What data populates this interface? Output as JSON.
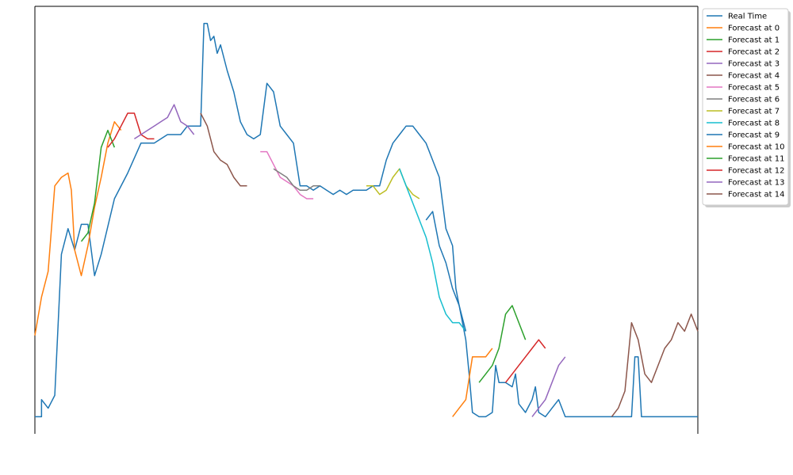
{
  "chart_data": {
    "type": "line",
    "title": "",
    "xlabel": "",
    "ylabel": "",
    "xlim": [
      0,
      100
    ],
    "ylim": [
      0,
      100
    ],
    "grid": false,
    "legend_position": "top-right",
    "series": [
      {
        "name": "Real Time",
        "color": "#1f77b4",
        "points": [
          [
            0,
            4
          ],
          [
            1,
            4
          ],
          [
            1,
            8
          ],
          [
            2,
            6
          ],
          [
            3,
            9
          ],
          [
            4,
            42
          ],
          [
            5,
            48
          ],
          [
            6,
            43
          ],
          [
            7,
            49
          ],
          [
            8,
            49
          ],
          [
            9,
            37
          ],
          [
            10,
            42
          ],
          [
            12,
            55
          ],
          [
            14,
            61
          ],
          [
            16,
            68
          ],
          [
            18,
            68
          ],
          [
            19,
            69
          ],
          [
            20,
            70
          ],
          [
            22,
            70
          ],
          [
            23,
            72
          ],
          [
            24,
            72
          ],
          [
            25,
            72
          ],
          [
            25.5,
            96
          ],
          [
            26,
            96
          ],
          [
            26.5,
            92
          ],
          [
            27,
            93
          ],
          [
            27.5,
            89
          ],
          [
            28,
            91
          ],
          [
            29,
            85
          ],
          [
            30,
            80
          ],
          [
            31,
            73
          ],
          [
            32,
            70
          ],
          [
            33,
            69
          ],
          [
            34,
            70
          ],
          [
            35,
            82
          ],
          [
            36,
            80
          ],
          [
            37,
            72
          ],
          [
            38,
            70
          ],
          [
            39,
            68
          ],
          [
            40,
            58
          ],
          [
            41,
            58
          ],
          [
            42,
            57
          ],
          [
            43,
            58
          ],
          [
            44,
            57
          ],
          [
            45,
            56
          ],
          [
            46,
            57
          ],
          [
            47,
            56
          ],
          [
            48,
            57
          ],
          [
            49,
            57
          ],
          [
            50,
            57
          ],
          [
            51,
            58
          ],
          [
            52,
            58
          ],
          [
            53,
            64
          ],
          [
            54,
            68
          ],
          [
            55,
            70
          ],
          [
            56,
            72
          ],
          [
            57,
            72
          ],
          [
            58,
            70
          ],
          [
            59,
            68
          ],
          [
            60,
            64
          ],
          [
            61,
            60
          ],
          [
            62,
            48
          ],
          [
            63,
            44
          ],
          [
            63.5,
            34
          ],
          [
            64,
            30
          ],
          [
            65,
            22
          ],
          [
            65.5,
            14
          ],
          [
            66,
            5
          ],
          [
            67,
            4
          ],
          [
            68,
            4
          ],
          [
            69,
            5
          ],
          [
            69.5,
            16
          ],
          [
            70,
            12
          ],
          [
            71,
            12
          ],
          [
            72,
            11
          ],
          [
            72.5,
            14
          ],
          [
            73,
            7
          ],
          [
            74,
            5
          ],
          [
            75,
            8
          ],
          [
            75.5,
            11
          ],
          [
            76,
            5
          ],
          [
            77,
            4
          ],
          [
            78,
            6
          ],
          [
            79,
            8
          ],
          [
            80,
            4
          ],
          [
            81,
            4
          ],
          [
            82,
            4
          ],
          [
            90,
            4
          ],
          [
            90.5,
            18
          ],
          [
            91,
            18
          ],
          [
            91.5,
            4
          ],
          [
            100,
            4
          ]
        ]
      },
      {
        "name": "Forecast at 0",
        "color": "#ff7f0e",
        "points": [
          [
            0,
            23
          ],
          [
            1,
            32
          ],
          [
            2,
            38
          ],
          [
            3,
            58
          ],
          [
            4,
            60
          ],
          [
            5,
            61
          ],
          [
            5.5,
            57
          ],
          [
            6,
            43
          ],
          [
            7,
            37
          ],
          [
            8,
            44
          ],
          [
            9,
            53
          ],
          [
            10,
            60
          ],
          [
            11,
            68
          ],
          [
            12,
            73
          ],
          [
            13,
            71
          ]
        ]
      },
      {
        "name": "Forecast at 1",
        "color": "#2ca02c",
        "points": [
          [
            7,
            45
          ],
          [
            8,
            47
          ],
          [
            9,
            54
          ],
          [
            10,
            67
          ],
          [
            11,
            71
          ],
          [
            12,
            67
          ]
        ]
      },
      {
        "name": "Forecast at 2",
        "color": "#d62728",
        "points": [
          [
            11,
            67
          ],
          [
            12,
            69
          ],
          [
            13,
            72
          ],
          [
            14,
            75
          ],
          [
            15,
            75
          ],
          [
            16,
            70
          ],
          [
            17,
            69
          ],
          [
            18,
            69
          ]
        ]
      },
      {
        "name": "Forecast at 3",
        "color": "#9467bd",
        "points": [
          [
            15,
            69
          ],
          [
            16,
            70
          ],
          [
            17,
            71
          ],
          [
            18,
            72
          ],
          [
            19,
            73
          ],
          [
            20,
            74
          ],
          [
            21,
            77
          ],
          [
            22,
            73
          ],
          [
            23,
            72
          ],
          [
            24,
            70
          ]
        ]
      },
      {
        "name": "Forecast at 4",
        "color": "#8c564b",
        "points": [
          [
            25,
            75
          ],
          [
            26,
            72
          ],
          [
            27,
            66
          ],
          [
            28,
            64
          ],
          [
            29,
            63
          ],
          [
            30,
            60
          ],
          [
            31,
            58
          ],
          [
            32,
            58
          ]
        ]
      },
      {
        "name": "Forecast at 5",
        "color": "#e377c2",
        "points": [
          [
            34,
            66
          ],
          [
            35,
            66
          ],
          [
            36,
            63
          ],
          [
            37,
            60
          ],
          [
            38,
            59
          ],
          [
            39,
            58
          ],
          [
            40,
            56
          ],
          [
            41,
            55
          ],
          [
            42,
            55
          ]
        ]
      },
      {
        "name": "Forecast at 6",
        "color": "#7f7f7f",
        "points": [
          [
            36,
            62
          ],
          [
            37,
            61
          ],
          [
            38,
            60
          ],
          [
            39,
            58
          ],
          [
            40,
            57
          ],
          [
            41,
            57
          ],
          [
            42,
            58
          ],
          [
            43,
            58
          ]
        ]
      },
      {
        "name": "Forecast at 7",
        "color": "#bcbd22",
        "points": [
          [
            50,
            58
          ],
          [
            51,
            58
          ],
          [
            52,
            56
          ],
          [
            53,
            57
          ],
          [
            54,
            60
          ],
          [
            55,
            62
          ],
          [
            56,
            58
          ],
          [
            57,
            56
          ],
          [
            58,
            55
          ]
        ]
      },
      {
        "name": "Forecast at 8",
        "color": "#17becf",
        "points": [
          [
            55,
            62
          ],
          [
            56,
            58
          ],
          [
            57,
            54
          ],
          [
            58,
            50
          ],
          [
            59,
            46
          ],
          [
            60,
            40
          ],
          [
            61,
            32
          ],
          [
            62,
            28
          ],
          [
            63,
            26
          ],
          [
            64,
            26
          ],
          [
            65,
            24
          ]
        ]
      },
      {
        "name": "Forecast at 9",
        "color": "#1f77b4",
        "points": [
          [
            59,
            50
          ],
          [
            60,
            52
          ],
          [
            61,
            44
          ],
          [
            62,
            40
          ],
          [
            63,
            34
          ],
          [
            64,
            30
          ],
          [
            65,
            24
          ]
        ]
      },
      {
        "name": "Forecast at 10",
        "color": "#ff7f0e",
        "points": [
          [
            63,
            4
          ],
          [
            64,
            6
          ],
          [
            65,
            8
          ],
          [
            66,
            18
          ],
          [
            67,
            18
          ],
          [
            68,
            18
          ],
          [
            69,
            20
          ]
        ]
      },
      {
        "name": "Forecast at 11",
        "color": "#2ca02c",
        "points": [
          [
            67,
            12
          ],
          [
            68,
            14
          ],
          [
            69,
            16
          ],
          [
            70,
            20
          ],
          [
            71,
            28
          ],
          [
            72,
            30
          ],
          [
            73,
            26
          ],
          [
            74,
            22
          ]
        ]
      },
      {
        "name": "Forecast at 12",
        "color": "#d62728",
        "points": [
          [
            71,
            12
          ],
          [
            72,
            14
          ],
          [
            73,
            16
          ],
          [
            74,
            18
          ],
          [
            75,
            20
          ],
          [
            76,
            22
          ],
          [
            77,
            20
          ]
        ]
      },
      {
        "name": "Forecast at 13",
        "color": "#9467bd",
        "points": [
          [
            75,
            4
          ],
          [
            76,
            6
          ],
          [
            77,
            8
          ],
          [
            78,
            12
          ],
          [
            79,
            16
          ],
          [
            80,
            18
          ]
        ]
      },
      {
        "name": "Forecast at 14",
        "color": "#8c564b",
        "points": [
          [
            87,
            4
          ],
          [
            88,
            6
          ],
          [
            89,
            10
          ],
          [
            90,
            26
          ],
          [
            91,
            22
          ],
          [
            92,
            14
          ],
          [
            93,
            12
          ],
          [
            94,
            16
          ],
          [
            95,
            20
          ],
          [
            96,
            22
          ],
          [
            97,
            26
          ],
          [
            98,
            24
          ],
          [
            99,
            28
          ],
          [
            100,
            24
          ]
        ]
      }
    ]
  }
}
